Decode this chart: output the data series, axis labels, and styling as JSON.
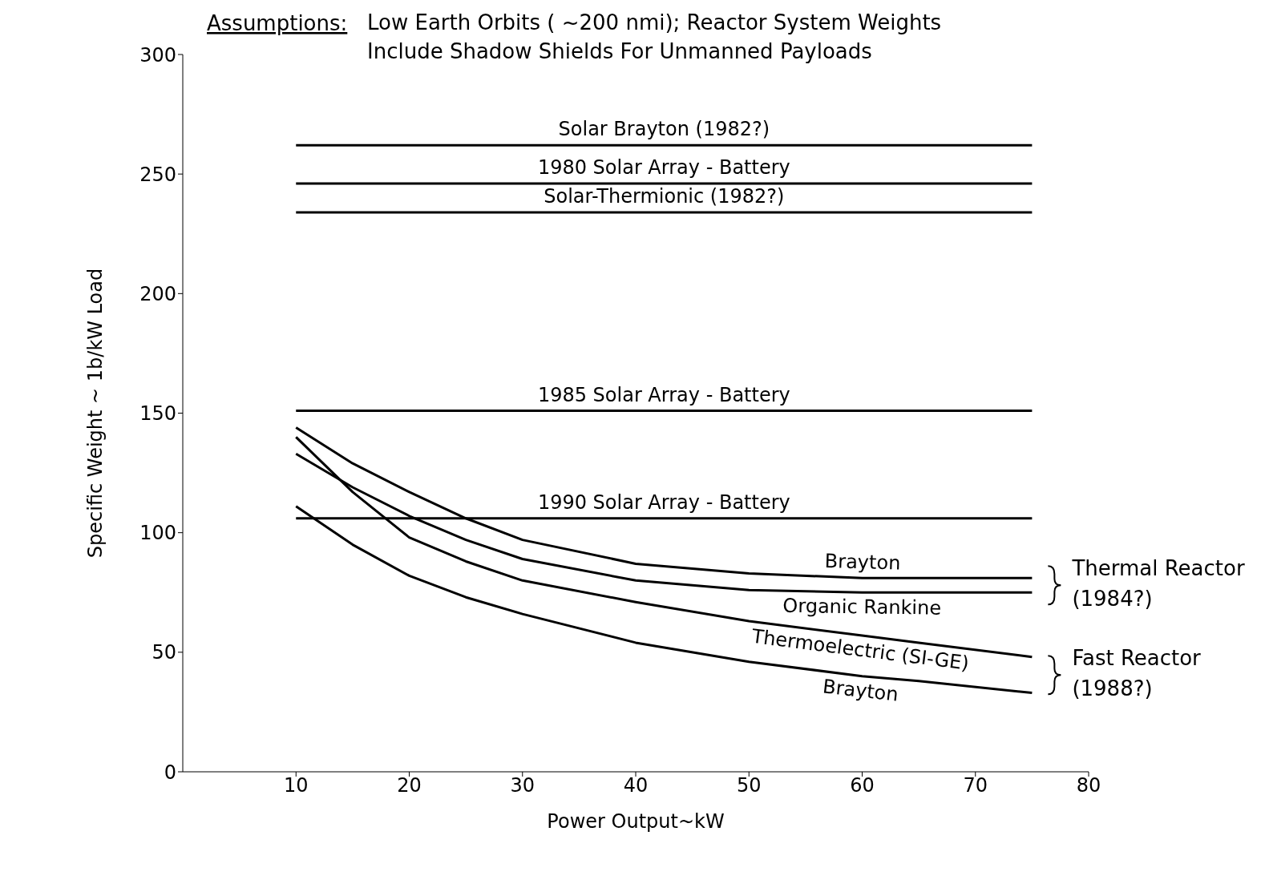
{
  "chart_data": {
    "type": "line",
    "title": "Assumptions:",
    "subtitle": "Low Earth Orbits ( ~200 nmi); Reactor System Weights Include Shadow Shields For Unmanned Payloads",
    "xlabel": "Power Output~kW",
    "ylabel": "Specific Weight ~ 1b/kW Load",
    "xlim": [
      0,
      80
    ],
    "xticks": [
      10,
      20,
      30,
      40,
      50,
      60,
      70,
      80
    ],
    "ylim": [
      0,
      300
    ],
    "yticks": [
      0,
      50,
      100,
      150,
      200,
      250,
      300
    ],
    "marker": "none",
    "line_style": "solid",
    "series": [
      {
        "name": "Solar Brayton (1982?)",
        "color": "#000000",
        "x": [
          10,
          42.5,
          75
        ],
        "values": [
          262,
          262,
          262
        ]
      },
      {
        "name": "1980 Solar Array - Battery",
        "color": "#000000",
        "x": [
          10,
          42.5,
          75
        ],
        "values": [
          246,
          246,
          246
        ]
      },
      {
        "name": "Solar-Thermionic (1982?)",
        "color": "#000000",
        "x": [
          10,
          42.5,
          75
        ],
        "values": [
          234,
          234,
          234
        ]
      },
      {
        "name": "1985 Solar Array - Battery",
        "color": "#000000",
        "x": [
          10,
          42.5,
          75
        ],
        "values": [
          151,
          151,
          151
        ]
      },
      {
        "name": "1990 Solar Array - Battery",
        "color": "#000000",
        "x": [
          10,
          42.5,
          75
        ],
        "values": [
          106,
          106,
          106
        ]
      },
      {
        "name": "Brayton",
        "color": "#000000",
        "x": [
          10,
          15,
          20,
          25,
          30,
          40,
          50,
          60,
          65,
          75
        ],
        "values": [
          144,
          129,
          117,
          106,
          97,
          87,
          83,
          81,
          81,
          81
        ]
      },
      {
        "name": "Organic Rankine",
        "color": "#000000",
        "x": [
          10,
          15,
          20,
          25,
          30,
          40,
          50,
          60,
          65,
          75
        ],
        "values": [
          133,
          119,
          107,
          97,
          89,
          80,
          76,
          75,
          75,
          75
        ]
      },
      {
        "name": "Thermoelectric (SI-GE)",
        "color": "#000000",
        "x": [
          10,
          15,
          20,
          25,
          30,
          40,
          50,
          60,
          65,
          75
        ],
        "values": [
          140,
          117,
          98,
          88,
          80,
          71,
          63,
          57,
          54,
          48
        ]
      },
      {
        "name": "Brayton",
        "color": "#000000",
        "x": [
          10,
          15,
          20,
          25,
          30,
          40,
          50,
          60,
          65,
          75
        ],
        "values": [
          111,
          95,
          82,
          73,
          66,
          54,
          46,
          40,
          38,
          33
        ]
      }
    ],
    "annotations": [
      "Thermal Reactor (1984?)",
      "Fast Reactor (1988?)"
    ]
  }
}
